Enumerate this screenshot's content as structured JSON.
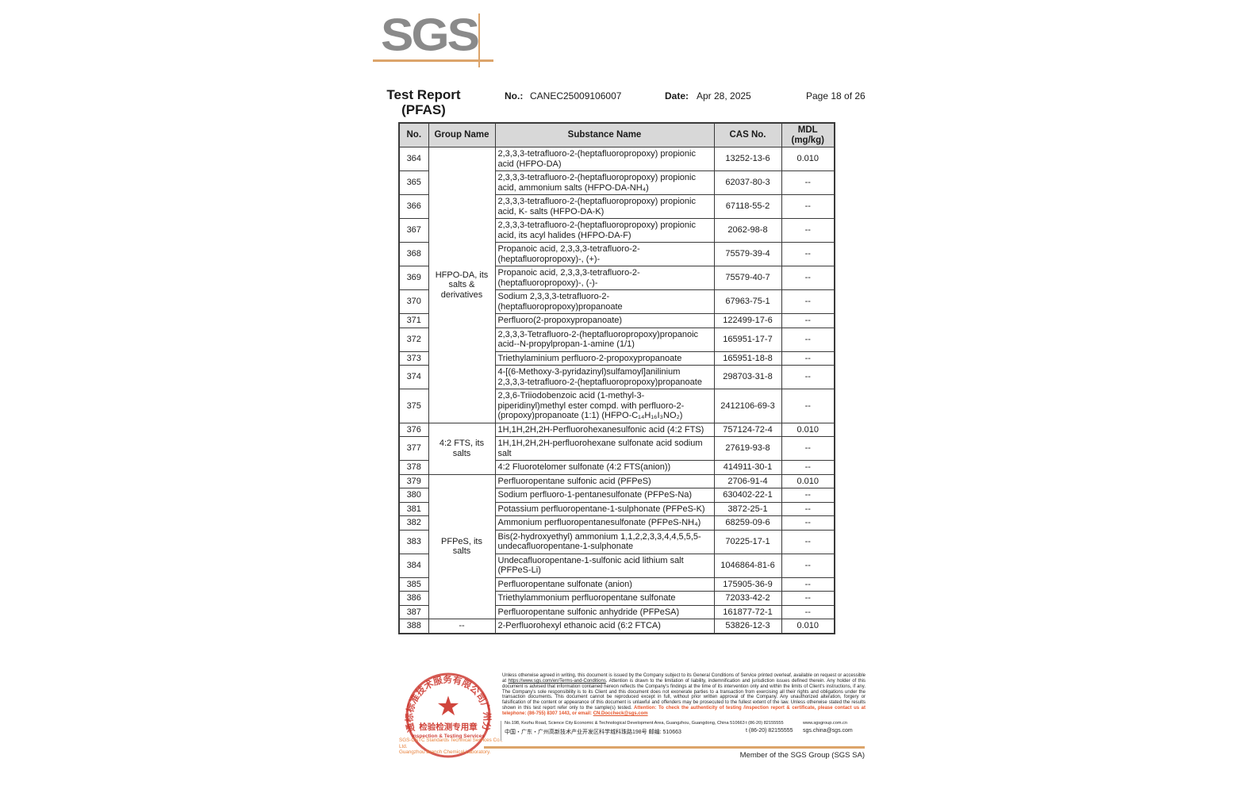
{
  "colors": {
    "accent_orange": "#dca46a",
    "attention_red": "#e4552b",
    "stamp_red": "#cb3128",
    "logo_gray": "#8a8a8a",
    "table_header_bg": "#d8d8d8"
  },
  "header": {
    "logo_text": "SGS",
    "title_line1": "Test Report",
    "title_line2": "(PFAS)",
    "no_label": "No.:",
    "no_value": "CANEC25009106007",
    "date_label": "Date:",
    "date_value": "Apr 28, 2025",
    "page_label": "Page 18 of 26"
  },
  "table": {
    "headers": {
      "no": "No.",
      "group": "Group Name",
      "substance": "Substance Name",
      "cas": "CAS No.",
      "mdl_line1": "MDL",
      "mdl_line2": "(mg/kg)"
    },
    "groups": [
      {
        "name": "HFPO-DA, its salts & derivatives",
        "rows": [
          {
            "no": "364",
            "substance": "2,3,3,3-tetrafluoro-2-(heptafluoropropoxy) propionic acid (HFPO-DA)",
            "cas": "13252-13-6",
            "mdl": "0.010"
          },
          {
            "no": "365",
            "substance": "2,3,3,3-tetrafluoro-2-(heptafluoropropoxy) propionic acid, ammonium salts (HFPO-DA-NH₄)",
            "cas": "62037-80-3",
            "mdl": "--"
          },
          {
            "no": "366",
            "substance": "2,3,3,3-tetrafluoro-2-(heptafluoropropoxy) propionic acid, K- salts (HFPO-DA-K)",
            "cas": "67118-55-2",
            "mdl": "--"
          },
          {
            "no": "367",
            "substance": "2,3,3,3-tetrafluoro-2-(heptafluoropropoxy) propionic acid, its acyl halides (HFPO-DA-F)",
            "cas": "2062-98-8",
            "mdl": "--"
          },
          {
            "no": "368",
            "substance": "Propanoic acid, 2,3,3,3-tetrafluoro-2-(heptafluoropropoxy)-, (+)-",
            "cas": "75579-39-4",
            "mdl": "--"
          },
          {
            "no": "369",
            "substance": "Propanoic acid, 2,3,3,3-tetrafluoro-2-(heptafluoropropoxy)-, (-)-",
            "cas": "75579-40-7",
            "mdl": "--"
          },
          {
            "no": "370",
            "substance": "Sodium 2,3,3,3-tetrafluoro-2-(heptafluoropropoxy)propanoate",
            "cas": "67963-75-1",
            "mdl": "--"
          },
          {
            "no": "371",
            "substance": "Perfluoro(2-propoxypropanoate)",
            "cas": "122499-17-6",
            "mdl": "--"
          },
          {
            "no": "372",
            "substance": "2,3,3,3-Tetrafluoro-2-(heptafluoropropoxy)propanoic acid--N-propylpropan-1-amine (1/1)",
            "cas": "165951-17-7",
            "mdl": "--"
          },
          {
            "no": "373",
            "substance": "Triethylaminium perfluoro-2-propoxypropanoate",
            "cas": "165951-18-8",
            "mdl": "--"
          },
          {
            "no": "374",
            "substance": "4-[(6-Methoxy-3-pyridazinyl)sulfamoyl]anilinium 2,3,3,3-tetrafluoro-2-(heptafluoropropoxy)propanoate",
            "cas": "298703-31-8",
            "mdl": "--"
          },
          {
            "no": "375",
            "substance": "2,3,6-Triiodobenzoic acid (1-methyl-3-piperidinyl)methyl ester compd. with perfluoro-2-(propoxy)propanoate (1:1) (HFPO-C₁₄H₁₆I₃NO₂)",
            "cas": "2412106-69-3",
            "mdl": "--"
          }
        ]
      },
      {
        "name": "4:2 FTS, its salts",
        "rows": [
          {
            "no": "376",
            "substance": "1H,1H,2H,2H-Perfluorohexanesulfonic acid (4:2 FTS)",
            "cas": "757124-72-4",
            "mdl": "0.010"
          },
          {
            "no": "377",
            "substance": "1H,1H,2H,2H-perfluorohexane sulfonate acid sodium salt",
            "cas": "27619-93-8",
            "mdl": "--"
          },
          {
            "no": "378",
            "substance": "4:2 Fluorotelomer sulfonate (4:2 FTS(anion))",
            "cas": "414911-30-1",
            "mdl": "--"
          }
        ]
      },
      {
        "name": "PFPeS, its salts",
        "rows": [
          {
            "no": "379",
            "substance": "Perfluoropentane sulfonic acid (PFPeS)",
            "cas": "2706-91-4",
            "mdl": "0.010"
          },
          {
            "no": "380",
            "substance": "Sodium perfluoro-1-pentanesulfonate (PFPeS-Na)",
            "cas": "630402-22-1",
            "mdl": "--"
          },
          {
            "no": "381",
            "substance": "Potassium perfluoropentane-1-sulphonate (PFPeS-K)",
            "cas": "3872-25-1",
            "mdl": "--"
          },
          {
            "no": "382",
            "substance": "Ammonium perfluoropentanesulfonate (PFPeS-NH₄)",
            "cas": "68259-09-6",
            "mdl": "--"
          },
          {
            "no": "383",
            "substance": "Bis(2-hydroxyethyl) ammonium 1,1,2,2,3,3,4,4,5,5,5-undecafluoropentane-1-sulphonate",
            "cas": "70225-17-1",
            "mdl": "--"
          },
          {
            "no": "384",
            "substance": "Undecafluoropentane-1-sulfonic acid lithium salt (PFPeS-Li)",
            "cas": "1046864-81-6",
            "mdl": "--"
          },
          {
            "no": "385",
            "substance": "Perfluoropentane sulfonate (anion)",
            "cas": "175905-36-9",
            "mdl": "--"
          },
          {
            "no": "386",
            "substance": "Triethylammonium perfluoropentane sulfonate",
            "cas": "72033-42-2",
            "mdl": "--"
          },
          {
            "no": "387",
            "substance": "Perfluoropentane sulfonic anhydride (PFPeSA)",
            "cas": "161877-72-1",
            "mdl": "--"
          }
        ]
      },
      {
        "name": "--",
        "rows": [
          {
            "no": "388",
            "substance": "2-Perfluorohexyl ethanoic acid (6:2 FTCA)",
            "cas": "53826-12-3",
            "mdl": "0.010"
          }
        ]
      }
    ]
  },
  "footer": {
    "disclaimer_part1": "Unless otherwise agreed in writing, this document is issued by the Company subject to its General Conditions of Service printed overleaf, available on request or accessible at ",
    "disclaimer_link": "https://www.sgs.com/en/Terms-and-Conditions",
    "disclaimer_part2": ". Attention is drawn to the limitation of liability, indemnification and jurisdiction issues defined therein. Any holder of this document is advised that information contained hereon reflects the Company's findings at the time of its intervention only and within the limits of Client's instructions, if any. The Company's sole responsibility is to its Client and this document does not exonerate parties to a transaction from exercising all their rights and obligations under the transaction documents. This document cannot be reproduced except in full, without prior written approval of the Company. Any unauthorized alteration, forgery or falsification of the content or appearance of this document is unlawful and offenders may be prosecuted to the fullest extent of the law. Unless otherwise stated the results shown in this test report refer only to the sample(s) tested.",
    "attention_text": "Attention: To check the authenticity of testing /inspection report & certificate, please contact us at telephone: (86-755) 8307 1443, or email: ",
    "attention_email": "CN.Doccheck@sgs.com",
    "address_en": "No.198, Kezhu Road, Science City Economic & Technological Development Area, Guangzhou, Guangdong, China 510663",
    "tel_en": "t (86-20) 82155555",
    "web": "www.sgsgroup.com.cn",
    "address_cn": "中国・广东・广州高新技术产业开发区科学城科珠路198号   邮编: 510663",
    "tel_cn": "t (86-20) 82155555",
    "email": "sgs.china@sgs.com",
    "member": "Member of the SGS Group (SGS SA)",
    "stamp": {
      "ring_text": "通标标准技术服务有限公司广州分公司",
      "star": "★",
      "line1": "检验检测专用章",
      "line2": "Inspection & Testing Services"
    },
    "company_line1": "SGS-CSTC Standards Technical Services Co., Ltd.",
    "company_line2": "Guangzhou Branch Chemical Laboratory."
  }
}
